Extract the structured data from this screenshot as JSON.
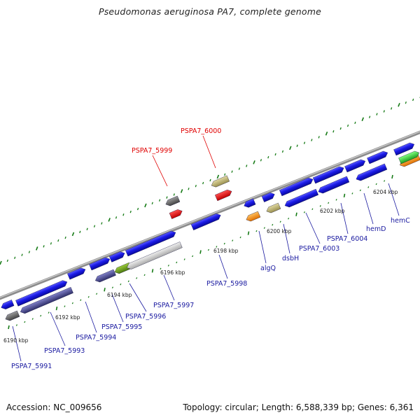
{
  "title": "Pseudomonas aeruginosa PA7, complete genome",
  "footer": {
    "accession": "Accession: NC_009656",
    "summary": "Topology: circular; Length: 6,588,339 bp; Genes: 6,361"
  },
  "colors": {
    "backbone": "#8c8c8c",
    "gene": "#1a1ae6",
    "highlight_label": "#e00000",
    "normal_label": "#1a1aa0",
    "tick": "#157a15"
  },
  "ticks": [
    "6190 kbp",
    "6192 kbp",
    "6194 kbp",
    "6196 kbp",
    "6198 kbp",
    "6200 kbp",
    "6202 kbp",
    "6204 kbp"
  ],
  "labels": [
    {
      "text": "PSPA7_5999",
      "color": "red"
    },
    {
      "text": "PSPA7_6000",
      "color": "red"
    },
    {
      "text": "PSPA7_5991",
      "color": "blue"
    },
    {
      "text": "PSPA7_5993",
      "color": "blue"
    },
    {
      "text": "PSPA7_5994",
      "color": "blue"
    },
    {
      "text": "PSPA7_5995",
      "color": "blue"
    },
    {
      "text": "PSPA7_5996",
      "color": "blue"
    },
    {
      "text": "PSPA7_5997",
      "color": "blue"
    },
    {
      "text": "PSPA7_5998",
      "color": "blue"
    },
    {
      "text": "algQ",
      "color": "blue"
    },
    {
      "text": "dsbH",
      "color": "blue"
    },
    {
      "text": "PSPA7_6003",
      "color": "blue"
    },
    {
      "text": "PSPA7_6004",
      "color": "blue"
    },
    {
      "text": "hemD",
      "color": "blue"
    },
    {
      "text": "hemC",
      "color": "blue"
    }
  ]
}
